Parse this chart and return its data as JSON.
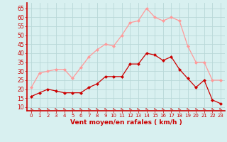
{
  "hours": [
    0,
    1,
    2,
    3,
    4,
    5,
    6,
    7,
    8,
    9,
    10,
    11,
    12,
    13,
    14,
    15,
    16,
    17,
    18,
    19,
    20,
    21,
    22,
    23
  ],
  "wind_mean": [
    16,
    18,
    20,
    19,
    18,
    18,
    18,
    21,
    23,
    27,
    27,
    27,
    34,
    34,
    40,
    39,
    36,
    38,
    31,
    26,
    21,
    25,
    14,
    12
  ],
  "wind_gust": [
    21,
    29,
    30,
    31,
    31,
    26,
    32,
    38,
    42,
    45,
    44,
    50,
    57,
    58,
    65,
    60,
    58,
    60,
    58,
    44,
    35,
    35,
    25,
    25
  ],
  "bg_color": "#d8f0f0",
  "grid_color": "#b8d8d8",
  "mean_color": "#cc0000",
  "gust_color": "#ff9999",
  "axis_color": "#cc0000",
  "xlabel": "Vent moyen/en rafales ( km/h )",
  "ylabel_ticks": [
    10,
    15,
    20,
    25,
    30,
    35,
    40,
    45,
    50,
    55,
    60,
    65
  ],
  "ylim": [
    8,
    68
  ],
  "xlim": [
    -0.5,
    23.5
  ],
  "marker_size": 2.5,
  "linewidth": 0.9
}
